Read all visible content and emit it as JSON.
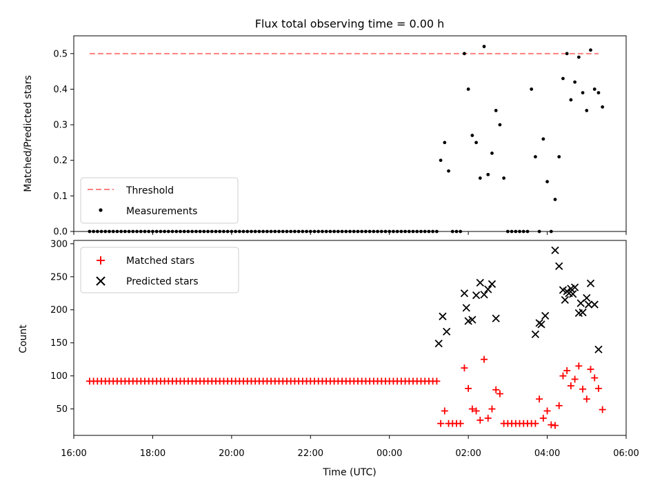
{
  "chart_data": [
    {
      "type": "scatter",
      "title": "Flux total observing time = 0.00 h",
      "xlabel": "",
      "ylabel": "Matched/Predicted stars",
      "ylim": [
        0,
        0.55
      ],
      "yticks": [
        "0.0",
        "0.1",
        "0.2",
        "0.3",
        "0.4",
        "0.5"
      ],
      "legend": {
        "placement": "lower-left",
        "entries": [
          "Threshold",
          "Measurements"
        ]
      },
      "threshold": {
        "name": "Threshold",
        "value": 0.5,
        "x_start": -7.6,
        "x_end": 5.3,
        "color": "#ff7f7f"
      },
      "series": [
        {
          "name": "Measurements",
          "color": "#000000",
          "zero_run": {
            "x_start": -7.6,
            "x_end": 1.2,
            "step": 0.1,
            "y": 0
          },
          "x": [
            1.3,
            1.4,
            1.5,
            1.6,
            1.7,
            1.8,
            1.9,
            2.0,
            2.1,
            2.2,
            2.3,
            2.4,
            2.5,
            2.6,
            2.7,
            2.8,
            2.9,
            3.0,
            3.1,
            3.2,
            3.3,
            3.4,
            3.5,
            3.6,
            3.7,
            3.8,
            3.9,
            4.0,
            4.1,
            4.2,
            4.3,
            4.4,
            4.5,
            4.6,
            4.7,
            4.8,
            4.9,
            5.0,
            5.1,
            5.2,
            5.3,
            5.4
          ],
          "y": [
            0.2,
            0.25,
            0.17,
            0,
            0,
            0,
            0.5,
            0.4,
            0.27,
            0.25,
            0.15,
            0.52,
            0.16,
            0.22,
            0.34,
            0.3,
            0.15,
            0,
            0,
            0,
            0,
            0,
            0,
            0.4,
            0.21,
            0,
            0.26,
            0.14,
            0,
            0.09,
            0.21,
            0.43,
            0.5,
            0.37,
            0.42,
            0.49,
            0.39,
            0.34,
            0.51,
            0.4,
            0.39,
            0.35
          ]
        }
      ]
    },
    {
      "type": "scatter",
      "title": "",
      "xlabel": "Time (UTC)",
      "ylabel": "Count",
      "ylim": [
        10,
        305
      ],
      "yticks": [
        "50",
        "100",
        "150",
        "200",
        "250",
        "300"
      ],
      "xlim": [
        "16:00",
        "06:00"
      ],
      "xticks": [
        "16:00",
        "18:00",
        "20:00",
        "22:00",
        "00:00",
        "02:00",
        "04:00",
        "06:00"
      ],
      "legend": {
        "placement": "top-left",
        "entries": [
          "Matched stars",
          "Predicted stars"
        ]
      },
      "series": [
        {
          "name": "Matched stars",
          "marker": "plus",
          "color": "#ff0000",
          "constant_run": {
            "x_start": -7.6,
            "x_end": 1.2,
            "step": 0.1,
            "y": 92
          },
          "x": [
            1.3,
            1.4,
            1.5,
            1.6,
            1.7,
            1.8,
            1.9,
            2.0,
            2.1,
            2.2,
            2.3,
            2.4,
            2.5,
            2.6,
            2.7,
            2.8,
            2.9,
            3.0,
            3.1,
            3.2,
            3.3,
            3.4,
            3.5,
            3.6,
            3.7,
            3.8,
            3.9,
            4.0,
            4.1,
            4.2,
            4.3,
            4.4,
            4.5,
            4.6,
            4.7,
            4.8,
            4.9,
            5.0,
            5.1,
            5.2,
            5.3,
            5.4
          ],
          "y": [
            28,
            47,
            28,
            28,
            28,
            28,
            112,
            81,
            50,
            47,
            33,
            125,
            36,
            50,
            79,
            73,
            28,
            28,
            28,
            28,
            28,
            28,
            28,
            28,
            28,
            65,
            36,
            47,
            26,
            25,
            55,
            100,
            108,
            85,
            95,
            115,
            80,
            65,
            110,
            97,
            81,
            49
          ]
        },
        {
          "name": "Predicted stars",
          "marker": "x",
          "color": "#000000",
          "x": [
            1.25,
            1.35,
            1.45,
            1.9,
            1.95,
            2.0,
            2.1,
            2.2,
            2.3,
            2.4,
            2.5,
            2.6,
            2.7,
            3.7,
            3.8,
            3.85,
            3.95,
            4.2,
            4.3,
            4.4,
            4.45,
            4.5,
            4.55,
            4.6,
            4.65,
            4.7,
            4.8,
            4.85,
            4.9,
            5.0,
            5.05,
            5.1,
            5.2,
            5.3
          ],
          "y": [
            149,
            190,
            167,
            225,
            203,
            183,
            185,
            222,
            241,
            223,
            231,
            239,
            187,
            163,
            180,
            178,
            191,
            290,
            266,
            230,
            215,
            228,
            225,
            232,
            224,
            234,
            195,
            210,
            196,
            218,
            208,
            240,
            208,
            140
          ]
        }
      ]
    }
  ]
}
